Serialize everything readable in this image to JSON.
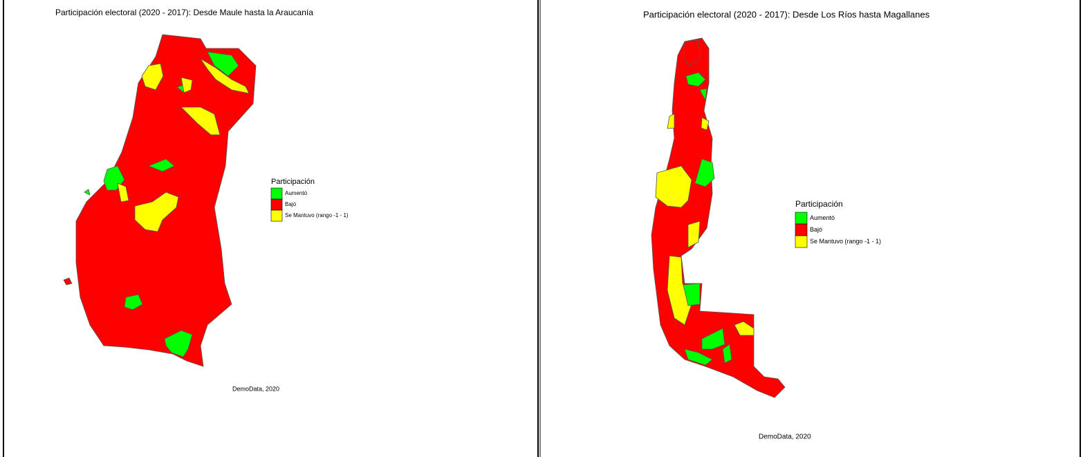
{
  "panels": [
    {
      "title": "Participación electoral (2020 - 2017): Desde Maule hasta la Araucanía",
      "legend": {
        "title": "Participación",
        "items": [
          {
            "label": "Aumentó",
            "color": "#00ff00"
          },
          {
            "label": "Bajó",
            "color": "#ff0000"
          },
          {
            "label": "Se Mantuvo (rango -1 - 1)",
            "color": "#ffff00"
          }
        ]
      },
      "caption": "DemoData, 2020"
    },
    {
      "title": "Participación electoral (2020 - 2017): Desde Los Ríos hasta Magallanes",
      "legend": {
        "title": "Participación",
        "items": [
          {
            "label": "Aumentó",
            "color": "#00ff00"
          },
          {
            "label": "Bajó",
            "color": "#ff0000"
          },
          {
            "label": "Se Mantuvo (rango -1 - 1)",
            "color": "#ffff00"
          }
        ]
      },
      "caption": "DemoData, 2020"
    }
  ]
}
